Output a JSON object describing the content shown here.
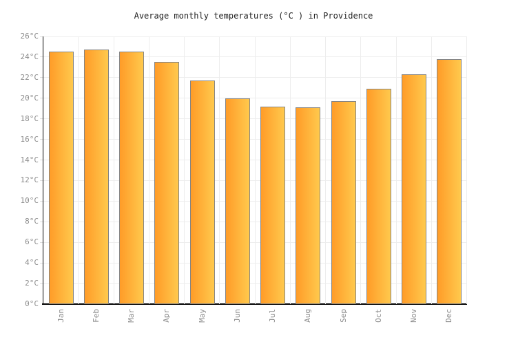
{
  "chart_data": {
    "type": "bar",
    "title": "Average monthly temperatures (°C ) in Providence",
    "categories": [
      "Jan",
      "Feb",
      "Mar",
      "Apr",
      "May",
      "Jun",
      "Jul",
      "Aug",
      "Sep",
      "Oct",
      "Nov",
      "Dec"
    ],
    "values": [
      24.5,
      24.7,
      24.5,
      23.5,
      21.7,
      20.0,
      19.2,
      19.1,
      19.7,
      20.9,
      22.3,
      23.8
    ],
    "unit": "°C",
    "xlabel": "",
    "ylabel": "°C",
    "ylim": [
      0,
      26
    ],
    "ytick_step": 2,
    "y_tick_labels": [
      "0°C",
      "2°C",
      "4°C",
      "6°C",
      "8°C",
      "10°C",
      "12°C",
      "14°C",
      "16°C",
      "18°C",
      "20°C",
      "22°C",
      "24°C",
      "26°C"
    ],
    "grid": true,
    "legend_position": "none",
    "styles": {
      "bar_gradient_left": "#FF9C28",
      "bar_gradient_right": "#FFC94D",
      "bar_border": "#848484",
      "grid_color": "#EDEDED",
      "axis_color": "#000000",
      "tick_label_color": "#8C8C8C",
      "title_color": "#222222",
      "background": "#FFFFFF"
    }
  }
}
